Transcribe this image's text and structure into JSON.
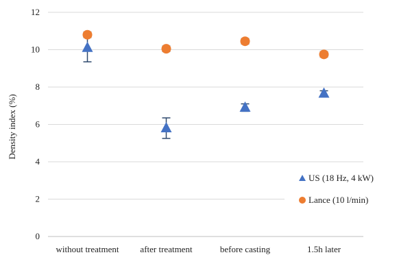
{
  "chart_data": {
    "type": "scatter",
    "categories": [
      "without treatment",
      "after treatment",
      "before casting",
      "1.5h later"
    ],
    "ylabel": "Density index (%)",
    "xlabel": "",
    "title": "",
    "ylim": [
      0,
      12
    ],
    "yticks": [
      0,
      2,
      4,
      6,
      8,
      10,
      12
    ],
    "grid": "horizontal",
    "legend_position": "bottom-right",
    "series": [
      {
        "name": "US (18 Hz, 4 kW)",
        "marker": "triangle",
        "color": "#4472C4",
        "values": [
          10.1,
          5.8,
          6.9,
          7.65
        ],
        "error": [
          0.75,
          0.55,
          0.2,
          0.15
        ]
      },
      {
        "name": "Lance (10 l/min)",
        "marker": "circle",
        "color": "#ED7D31",
        "values": [
          10.8,
          10.05,
          10.45,
          9.75
        ],
        "error": [
          0.15,
          0.15,
          0.15,
          0.15
        ]
      }
    ]
  }
}
